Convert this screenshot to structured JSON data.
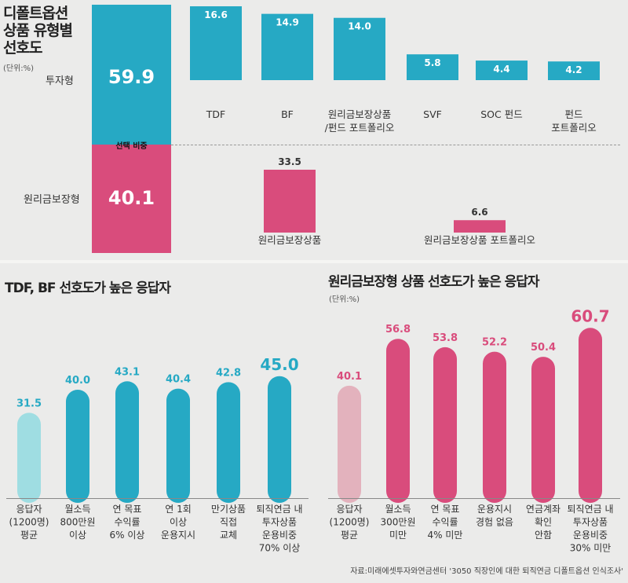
{
  "colors": {
    "teal": "#26a9c4",
    "pink": "#d94c7c",
    "teal_light": "#9fdde2",
    "pink_light": "#e3b2bd",
    "bg": "#ebebea"
  },
  "top": {
    "title_lines": [
      "디폴트옵션",
      "상품 유형별",
      "선호도"
    ],
    "unit": "(단위:%)",
    "invest_label": "투자형",
    "invest_value": "59.9",
    "guarantee_label": "원리금보장형",
    "guarantee_value": "40.1",
    "split_label": "선택 비중"
  },
  "left_title": "TDF, BF 선호도가 높은 응답자",
  "right_title": "원리금보장형 상품 선호도가 높은 응답자",
  "right_unit": "(단위:%)",
  "source": "자료:미래에셋투자와연금센터 '3050 직장인에 대한 퇴직연금 디폴트옵션 인식조사'",
  "chart_data": [
    {
      "type": "bar",
      "title": "디폴트옵션 상품 유형별 선호도 - 투자형",
      "categories": [
        "TDF",
        "BF",
        "원리금보장상품/펀드 포트폴리오",
        "SVF",
        "SOC 펀드",
        "펀드 포트폴리오"
      ],
      "category_lines": [
        [
          "TDF"
        ],
        [
          "BF"
        ],
        [
          "원리금보장상품",
          "/펀드 포트폴리오"
        ],
        [
          "SVF"
        ],
        [
          "SOC 펀드"
        ],
        [
          "펀드",
          "포트폴리오"
        ]
      ],
      "values": [
        16.6,
        14.9,
        14.0,
        5.8,
        4.4,
        4.2
      ]
    },
    {
      "type": "bar",
      "title": "디폴트옵션 상품 유형별 선호도 - 원리금보장형",
      "categories": [
        "원리금보장상품",
        "원리금보장상품 포트폴리오"
      ],
      "values": [
        33.5,
        6.6
      ]
    },
    {
      "type": "bar",
      "title": "TDF, BF 선호도가 높은 응답자",
      "categories": [
        "응답자(1200명) 평균",
        "월소득 800만원 이상",
        "연 목표 수익률 6% 이상",
        "연 1회 이상 운용지시",
        "만기상품 직접 교체",
        "퇴직연금 내 투자상품 운용비중 70% 이상"
      ],
      "category_lines": [
        [
          "응답자",
          "(1200명)",
          "평균"
        ],
        [
          "월소득",
          "800만원",
          "이상"
        ],
        [
          "연 목표",
          "수익률",
          "6% 이상"
        ],
        [
          "연 1회",
          "이상",
          "운용지시"
        ],
        [
          "만기상품",
          "직접",
          "교체"
        ],
        [
          "퇴직연금 내",
          "투자상품",
          "운용비중",
          "70% 이상"
        ]
      ],
      "values": [
        31.5,
        40.0,
        43.1,
        40.4,
        42.8,
        45.0
      ],
      "value_labels": [
        "31.5",
        "40.0",
        "43.1",
        "40.4",
        "42.8",
        "45.0"
      ]
    },
    {
      "type": "bar",
      "title": "원리금보장형 상품 선호도가 높은 응답자",
      "categories": [
        "응답자(1200명) 평균",
        "월소득 300만원 미만",
        "연 목표 수익률 4% 미만",
        "운용지시 경험 없음",
        "연금계좌 확인 안함",
        "퇴직연금 내 투자상품 운용비중 30% 미만"
      ],
      "category_lines": [
        [
          "응답자",
          "(1200명)",
          "평균"
        ],
        [
          "월소득",
          "300만원",
          "미만"
        ],
        [
          "연 목표",
          "수익률",
          "4% 미만"
        ],
        [
          "운용지시",
          "경험 없음"
        ],
        [
          "연금계좌",
          "확인",
          "안함"
        ],
        [
          "퇴직연금 내",
          "투자상품",
          "운용비중",
          "30% 미만"
        ]
      ],
      "values": [
        40.1,
        56.8,
        53.8,
        52.2,
        50.4,
        60.7
      ],
      "value_labels": [
        "40.1",
        "56.8",
        "53.8",
        "52.2",
        "50.4",
        "60.7"
      ]
    }
  ]
}
